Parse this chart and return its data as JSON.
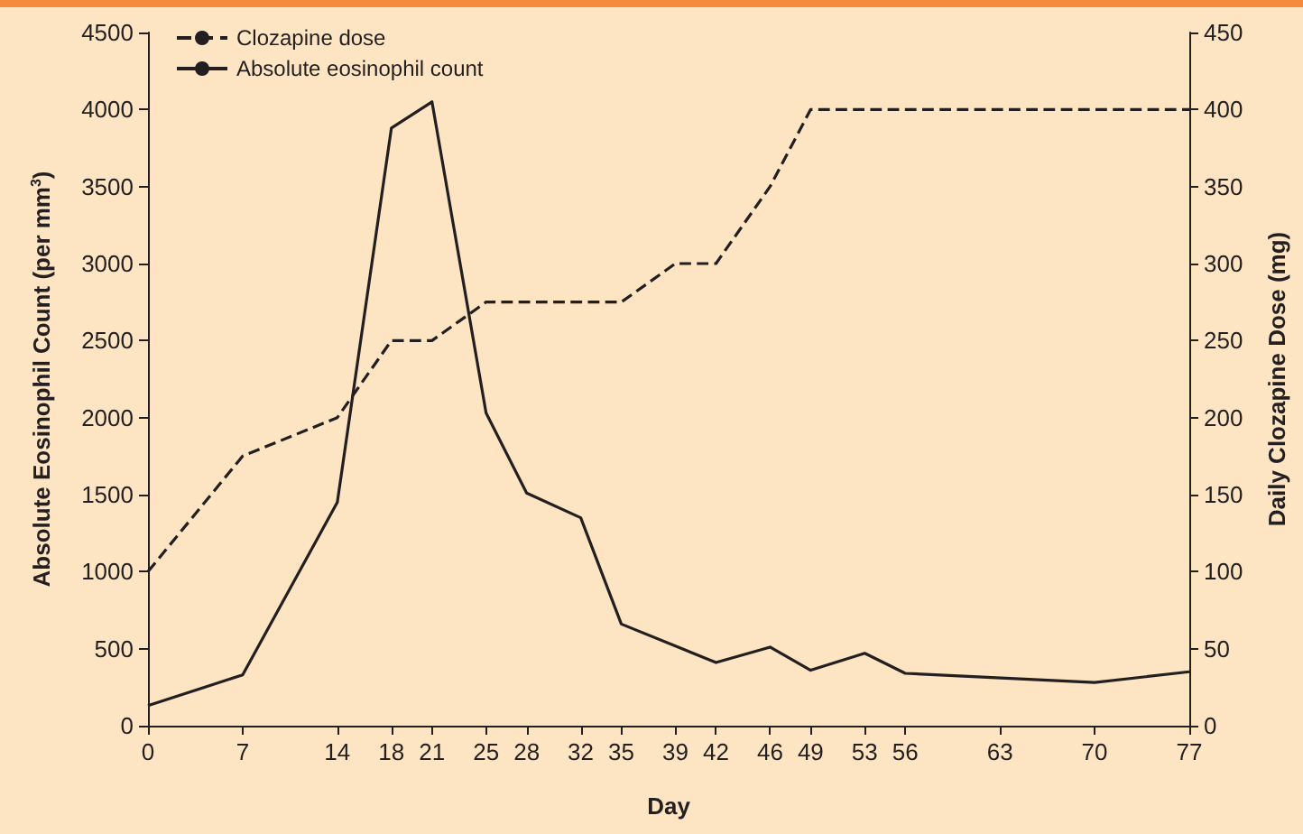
{
  "chart_data": {
    "type": "line",
    "xlabel": "Day",
    "ylabel": "Absolute Eosinophil Count (per mm$^{3}$)",
    "y2label": "Daily Clozapine Dose (mg)",
    "xlim": [
      0,
      77
    ],
    "xticks": [
      0,
      7,
      14,
      18,
      21,
      25,
      28,
      32,
      35,
      39,
      42,
      46,
      49,
      53,
      56,
      63,
      70,
      77
    ],
    "ylim": [
      0,
      4500
    ],
    "yticks": [
      0,
      500,
      1000,
      1500,
      2000,
      2500,
      3000,
      3500,
      4000,
      4500
    ],
    "y2lim": [
      0,
      450
    ],
    "y2ticks": [
      0,
      50,
      100,
      150,
      200,
      250,
      300,
      350,
      400,
      450
    ],
    "grid": false,
    "legend": "top left",
    "marker": "none",
    "series": [
      {
        "name": "Clozapine dose",
        "color": "#231f20",
        "axis": "y2",
        "line_style": "dashed",
        "x": [
          0,
          7,
          14,
          18,
          21,
          25,
          35,
          39,
          42,
          46,
          49,
          77
        ],
        "values": [
          100,
          175,
          200,
          250,
          250,
          275,
          275,
          300,
          300,
          350,
          400,
          400
        ]
      },
      {
        "name": "Absolute eosinophil count",
        "color": "#231f20",
        "line_style": "solid",
        "x": [
          0,
          7,
          14,
          18,
          21,
          25,
          28,
          32,
          35,
          42,
          46,
          49,
          53,
          56,
          70,
          77
        ],
        "values": [
          130,
          330,
          1450,
          3880,
          4050,
          2030,
          1510,
          1350,
          660,
          410,
          510,
          360,
          470,
          340,
          280,
          350
        ]
      }
    ]
  }
}
